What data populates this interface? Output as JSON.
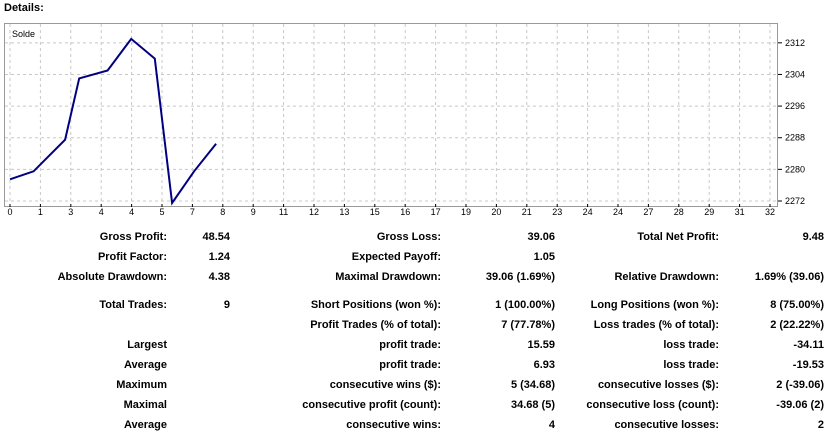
{
  "header": {
    "title": "Details:"
  },
  "chart_data": {
    "type": "line",
    "legend": "Solde",
    "x": [
      0,
      0.75,
      1.5,
      2.25,
      3,
      3.75,
      4.5,
      5.25,
      6,
      6.75,
      7.5
    ],
    "values": [
      2277.5,
      2279.5,
      2287.5,
      2303,
      2305,
      2313,
      2308,
      2271.5,
      2279.5,
      2286.5,
      null
    ],
    "series_points": [
      [
        0,
        2277.5
      ],
      [
        0.75,
        2279.5
      ],
      [
        1.75,
        2287.5
      ],
      [
        2.2,
        2303
      ],
      [
        3.1,
        2305
      ],
      [
        3.85,
        2313
      ],
      [
        4.6,
        2308
      ],
      [
        5.15,
        2271.5
      ],
      [
        5.85,
        2279.5
      ],
      [
        6.55,
        2286.5
      ]
    ],
    "x_ticks": [
      "0",
      "1",
      "3",
      "4",
      "4",
      "5",
      "7",
      "8",
      "9",
      "11",
      "12",
      "13",
      "15",
      "16",
      "17",
      "19",
      "20",
      "21",
      "23",
      "24",
      "24",
      "27",
      "28",
      "29",
      "31",
      "32"
    ],
    "y_ticks": [
      "2312",
      "2304",
      "2296",
      "2288",
      "2280",
      "2272"
    ],
    "ylim": [
      2272,
      2316
    ],
    "xlim": [
      0,
      24.15
    ],
    "grid": true,
    "line_color": "#000080"
  },
  "stats": {
    "gross_profit_label": "Gross Profit:",
    "gross_profit": "48.54",
    "gross_loss_label": "Gross Loss:",
    "gross_loss": "39.06",
    "total_net_profit_label": "Total Net Profit:",
    "total_net_profit": "9.48",
    "profit_factor_label": "Profit Factor:",
    "profit_factor": "1.24",
    "expected_payoff_label": "Expected Payoff:",
    "expected_payoff": "1.05",
    "absolute_drawdown_label": "Absolute Drawdown:",
    "absolute_drawdown": "4.38",
    "maximal_drawdown_label": "Maximal Drawdown:",
    "maximal_drawdown": "39.06 (1.69%)",
    "relative_drawdown_label": "Relative Drawdown:",
    "relative_drawdown": "1.69% (39.06)",
    "total_trades_label": "Total Trades:",
    "total_trades": "9",
    "short_positions_label": "Short Positions (won %):",
    "short_positions": "1 (100.00%)",
    "long_positions_label": "Long Positions (won %):",
    "long_positions": "8 (75.00%)",
    "profit_trades_label": "Profit Trades (% of total):",
    "profit_trades": "7 (77.78%)",
    "loss_trades_label": "Loss trades (% of total):",
    "loss_trades": "2 (22.22%)",
    "largest_label": "Largest",
    "largest_profit_label": "profit trade:",
    "largest_profit": "15.59",
    "largest_loss_label": "loss trade:",
    "largest_loss": "-34.11",
    "average_label": "Average",
    "average_profit_label": "profit trade:",
    "average_profit": "6.93",
    "average_loss_label": "loss trade:",
    "average_loss": "-19.53",
    "maximum_label": "Maximum",
    "max_cons_wins_label": "consecutive wins ($):",
    "max_cons_wins": "5 (34.68)",
    "max_cons_losses_label": "consecutive losses ($):",
    "max_cons_losses": "2 (-39.06)",
    "maximal_label": "Maximal",
    "maximal_cons_profit_label": "consecutive profit (count):",
    "maximal_cons_profit": "34.68 (5)",
    "maximal_cons_loss_label": "consecutive loss (count):",
    "maximal_cons_loss": "-39.06 (2)",
    "average2_label": "Average",
    "avg_cons_wins_label": "consecutive wins:",
    "avg_cons_wins": "4",
    "avg_cons_losses_label": "consecutive losses:",
    "avg_cons_losses": "2"
  }
}
